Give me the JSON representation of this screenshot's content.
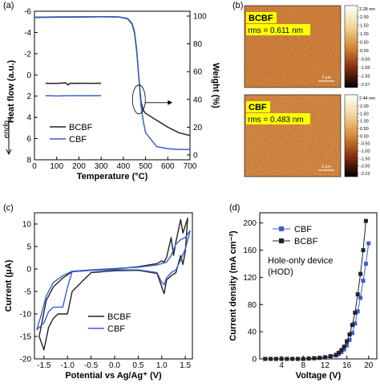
{
  "chart_data": [
    {
      "panel": "(a)",
      "type": "line",
      "xlabel": "Temperature (°C)",
      "ylabel": "Heat flow (a.u.)",
      "y2label": "Weight (%)",
      "endo_label": "endo",
      "xlim": [
        0,
        700
      ],
      "ylim": [
        -6,
        8
      ],
      "y2lim": [
        0,
        100
      ],
      "xticks": [
        0,
        100,
        200,
        300,
        400,
        500,
        600,
        700
      ],
      "yticks": [
        -6,
        -4,
        -2,
        0,
        2,
        4,
        6,
        8
      ],
      "y2ticks": [
        0,
        20,
        40,
        60,
        80,
        100
      ],
      "legend_position": "bottom-left",
      "series": [
        {
          "name": "BCBF",
          "color": "#222222",
          "axis": "weight",
          "x": [
            0,
            100,
            200,
            300,
            380,
            420,
            440,
            450,
            460,
            470,
            480,
            490,
            500,
            550,
            600,
            650,
            700
          ],
          "y": [
            99.0,
            99.2,
            99.3,
            99.5,
            99.3,
            98,
            94,
            88,
            75,
            55,
            38,
            32,
            30,
            25,
            20,
            16,
            14
          ]
        },
        {
          "name": "CBF",
          "color": "#3a5fcd",
          "axis": "weight",
          "x": [
            0,
            100,
            200,
            300,
            380,
            420,
            440,
            450,
            460,
            470,
            480,
            490,
            500,
            550,
            600,
            650,
            700
          ],
          "y": [
            99.2,
            99.4,
            99.5,
            99.6,
            99.4,
            98.2,
            94.5,
            89,
            76,
            55,
            35,
            24,
            16,
            6,
            4.5,
            4,
            4
          ]
        },
        {
          "name": "BCBF",
          "color": "#222222",
          "axis": "heatflow",
          "x": [
            50,
            100,
            140,
            150,
            160,
            200,
            250,
            300
          ],
          "y": [
            0.8,
            0.8,
            0.75,
            0.95,
            0.8,
            0.78,
            0.8,
            0.78
          ]
        },
        {
          "name": "CBF",
          "color": "#3a5fcd",
          "axis": "heatflow",
          "x": [
            50,
            100,
            150,
            200,
            250,
            300
          ],
          "y": [
            1.95,
            1.98,
            1.97,
            1.96,
            1.97,
            1.95
          ]
        }
      ]
    },
    {
      "panel": "(b)",
      "type": "heatmap",
      "images": [
        {
          "label": "BCBF",
          "rms": "rms = 0.611 nm",
          "scale_max": "2.28 nm",
          "scale_ticks": [
            "2.00",
            "1.50",
            "1.00",
            "0.50",
            "0.00",
            "-0.50",
            "-1.00",
            "-1.50",
            "-2.07"
          ],
          "scale_bar": "2 μm"
        },
        {
          "label": "CBF",
          "rms": "rms = 0.483 nm",
          "scale_max": "2.44 nm",
          "scale_ticks": [
            "2.00",
            "1.50",
            "1.00",
            "0.50",
            "0.00",
            "-0.50",
            "-1.00",
            "-1.50",
            "-2.00",
            "-2.23"
          ],
          "scale_bar": "2 μm"
        }
      ]
    },
    {
      "panel": "(c)",
      "type": "line",
      "xlabel": "Potential vs Ag/Ag⁺ (V)",
      "ylabel": "Current (μA)",
      "xlim": [
        -1.7,
        1.65
      ],
      "ylim": [
        -20,
        12.5
      ],
      "xticks": [
        -1.5,
        -1.0,
        -0.5,
        0.0,
        0.5,
        1.0,
        1.5
      ],
      "yticks": [
        -20,
        -15,
        -10,
        -5,
        0,
        5,
        10
      ],
      "legend_position": "bottom-center",
      "series": [
        {
          "name": "BCBF",
          "color": "#222222",
          "x": [
            0,
            -0.5,
            -0.9,
            -1.1,
            -1.3,
            -1.45,
            -1.6,
            -1.5,
            -1.4,
            -1.3,
            -1.2,
            -1.1,
            -1.0,
            -0.9,
            -0.5,
            0,
            0.5,
            0.9,
            1.0,
            1.05,
            1.1,
            1.2,
            1.3,
            1.4,
            1.45,
            1.5,
            1.55,
            1.45,
            1.4,
            1.3,
            1.25,
            1.2,
            1.1,
            1.05,
            1.0,
            0.9,
            0.5,
            0
          ],
          "y": [
            0,
            -0.3,
            -0.6,
            -2,
            -4,
            -7,
            -15,
            -18,
            -13,
            -11,
            -10,
            -10,
            -10,
            -5,
            -0.8,
            -0.4,
            -0.3,
            -1,
            -4,
            -5.5,
            -2.5,
            -1.5,
            -0.8,
            3,
            1,
            4,
            11.3,
            8,
            11,
            6,
            3,
            7,
            2.5,
            1.5,
            1.8,
            1.2,
            0.5,
            0
          ]
        },
        {
          "name": "CBF",
          "color": "#3a5fcd",
          "x": [
            0,
            -0.5,
            -0.9,
            -1.1,
            -1.3,
            -1.45,
            -1.55,
            -1.65,
            -1.5,
            -1.4,
            -1.3,
            -1.2,
            -1.1,
            -1.0,
            -0.9,
            -0.5,
            0,
            0.5,
            0.9,
            1.0,
            1.05,
            1.1,
            1.2,
            1.3,
            1.4,
            1.5,
            1.6,
            1.5,
            1.4,
            1.3,
            1.2,
            1.1,
            1.0,
            0.9,
            0.5,
            0
          ],
          "y": [
            0.1,
            -0.2,
            -0.5,
            -1.5,
            -3,
            -6,
            -10,
            -13.5,
            -12,
            -9.5,
            -8.5,
            -8.5,
            -8.5,
            -4,
            -0.6,
            -0.3,
            -0.2,
            -0.2,
            -0.8,
            -3,
            -3.5,
            -2,
            -0.8,
            -0.2,
            2,
            4.5,
            8.5,
            7,
            6.5,
            5.5,
            3,
            1.5,
            1.2,
            0.9,
            0.4,
            0.1
          ]
        }
      ]
    },
    {
      "panel": "(d)",
      "type": "line",
      "xlabel": "Voltage (V)",
      "ylabel": "Current density (mA cm⁻²)",
      "annotation": "Hole-only device (HOD)",
      "xlim": [
        0,
        21.5
      ],
      "ylim": [
        0,
        215
      ],
      "xticks": [
        4,
        8,
        12,
        16,
        20
      ],
      "yticks": [
        0,
        40,
        80,
        120,
        160,
        200
      ],
      "legend_position": "top-left",
      "series": [
        {
          "name": "CBF",
          "color": "#3a5fcd",
          "marker": "square",
          "x": [
            1,
            2,
            3,
            4,
            5,
            6,
            7,
            8,
            9,
            10,
            11,
            12,
            13,
            14,
            14.5,
            15,
            15.5,
            16,
            16.5,
            17,
            17.5,
            18,
            18.5,
            19,
            19.5,
            20
          ],
          "y": [
            0,
            0,
            0,
            0,
            0,
            0,
            0,
            0,
            0.5,
            1,
            1.5,
            2,
            3,
            5,
            7,
            10,
            14,
            20,
            28,
            38,
            52,
            70,
            90,
            115,
            140,
            170
          ]
        },
        {
          "name": "BCBF",
          "color": "#222222",
          "marker": "square",
          "x": [
            1,
            2,
            3,
            4,
            5,
            6,
            7,
            8,
            9,
            10,
            11,
            12,
            13,
            14,
            14.5,
            15,
            15.5,
            16,
            16.5,
            17,
            17.5,
            18,
            18.5,
            19,
            19.5
          ],
          "y": [
            0,
            0,
            0,
            0,
            0,
            0,
            0,
            0,
            0.5,
            1,
            1.5,
            2.5,
            4,
            6,
            9,
            13,
            18,
            26,
            36,
            50,
            68,
            95,
            125,
            160,
            203
          ]
        }
      ]
    }
  ]
}
